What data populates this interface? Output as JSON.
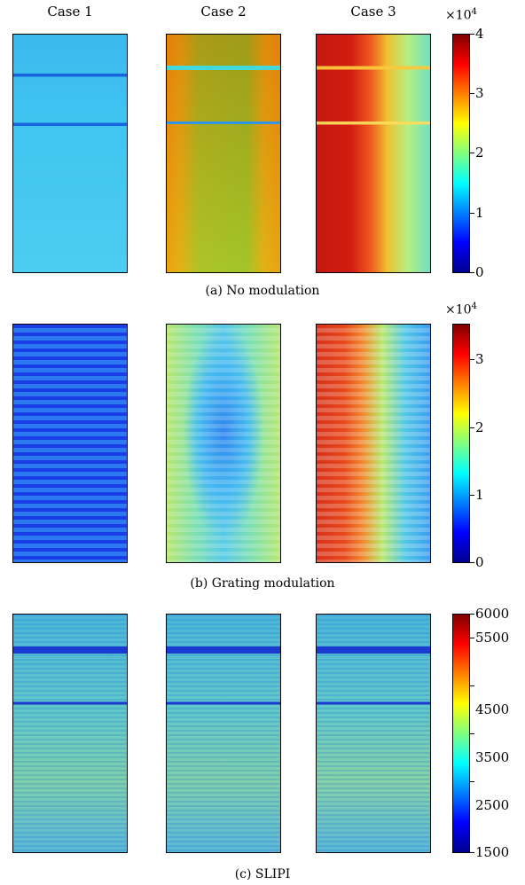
{
  "columns": [
    "Case 1",
    "Case 2",
    "Case 3"
  ],
  "rows": [
    {
      "caption": "(a) No modulation",
      "colorbar": {
        "multiplier": "×10",
        "exponent": "4",
        "ticks": [
          "0",
          "1",
          "2",
          "3",
          "4"
        ]
      },
      "panels": [
        {
          "name": "case-1"
        },
        {
          "name": "case-2"
        },
        {
          "name": "case-3"
        }
      ]
    },
    {
      "caption": "(b) Grating modulation",
      "colorbar": {
        "multiplier": "×10",
        "exponent": "4",
        "ticks": [
          "0",
          "1",
          "2",
          "3"
        ]
      },
      "panels": [
        {
          "name": "case-1"
        },
        {
          "name": "case-2"
        },
        {
          "name": "case-3"
        }
      ]
    },
    {
      "caption": "(c) SLIPI",
      "colorbar": {
        "ticks": [
          "1500",
          "2500",
          "3500",
          "4500",
          "5500",
          "6000"
        ]
      },
      "panels": [
        {
          "name": "case-1"
        },
        {
          "name": "case-2"
        },
        {
          "name": "case-3"
        }
      ]
    }
  ],
  "colormap": "jet"
}
